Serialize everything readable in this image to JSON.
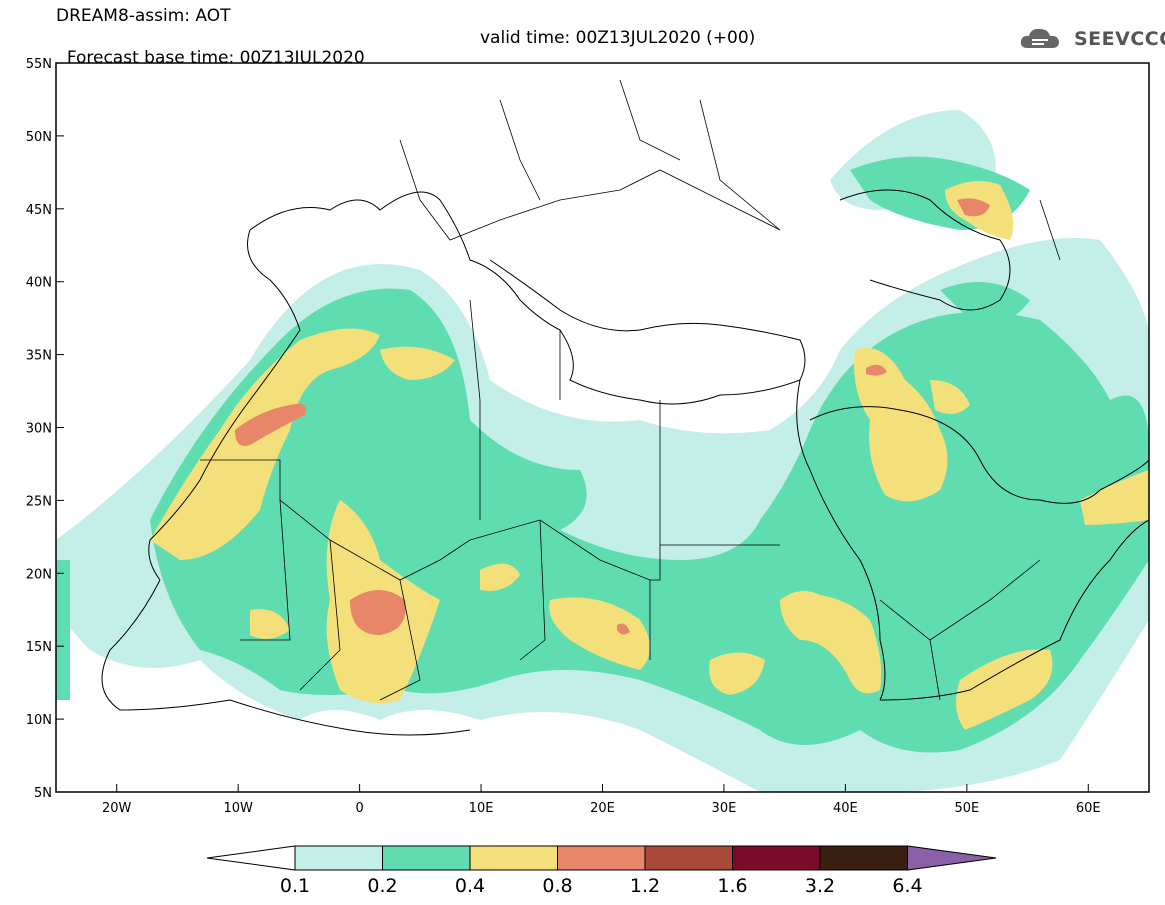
{
  "title": {
    "line1": "DREAM8-assim: AOT",
    "line2": "Forecast base time: 00Z13JUL2020",
    "valid": "valid time: 00Z13JUL2020 (+00)"
  },
  "logo": {
    "text": "SEEVCCC"
  },
  "map": {
    "lat_ticks": [
      "5N",
      "10N",
      "15N",
      "20N",
      "25N",
      "30N",
      "35N",
      "40N",
      "45N",
      "50N",
      "55N"
    ],
    "lon_ticks": [
      "20W",
      "10W",
      "0",
      "10E",
      "20E",
      "30E",
      "40E",
      "50E",
      "60E"
    ],
    "lon_range": [
      -25,
      65
    ],
    "lat_range": [
      5,
      55
    ]
  },
  "colorbar": {
    "levels": [
      "0.1",
      "0.2",
      "0.4",
      "0.8",
      "1.2",
      "1.6",
      "3.2",
      "6.4"
    ],
    "colors": {
      "under": "#ffffff",
      "c1": "#c4eee8",
      "c2": "#5fdcb0",
      "c3": "#f4e07a",
      "c4": "#e8866a",
      "c5": "#a74a38",
      "c6": "#7a0a2a",
      "c7": "#3a2010",
      "over": "#8a60a8"
    }
  }
}
